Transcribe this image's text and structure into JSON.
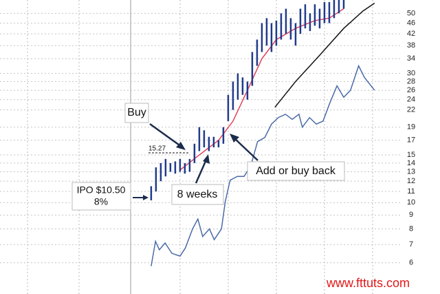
{
  "chart_data": {
    "type": "ohlc",
    "log_scale": true,
    "grid": true,
    "xlim": [
      -31.4,
      60
    ],
    "ylim": [
      4.6,
      56
    ],
    "yticks": [
      6,
      7,
      8,
      9,
      10,
      11,
      12,
      13,
      14,
      15,
      17,
      19,
      22,
      24,
      26,
      28,
      30,
      34,
      38,
      42,
      46,
      50
    ],
    "bars": {
      "color": "#1f3a8a",
      "x": [
        0,
        1,
        2,
        3,
        4,
        5,
        6,
        7,
        8,
        9,
        10,
        11,
        12,
        13,
        14,
        15,
        16,
        17,
        18,
        19,
        20,
        21,
        22,
        23,
        24,
        25,
        26,
        27,
        28,
        29,
        30,
        31,
        32,
        33,
        34,
        35,
        36,
        37,
        38,
        39,
        40
      ],
      "high": [
        11.5,
        13.5,
        14,
        14.5,
        14,
        14.2,
        14.5,
        14,
        14.5,
        16.5,
        19,
        18.5,
        17.5,
        17.5,
        17,
        19,
        25,
        28,
        30,
        29,
        28,
        36,
        40,
        46,
        48,
        46,
        47,
        50,
        52,
        48,
        46,
        52,
        54,
        50,
        54,
        52,
        55,
        55,
        56,
        56,
        56
      ],
      "low": [
        10.2,
        11,
        12,
        12.5,
        13,
        12.8,
        13,
        12.8,
        13,
        14,
        15.5,
        16,
        15.5,
        16,
        16,
        16.5,
        20,
        22,
        24,
        25,
        24,
        27,
        32,
        36,
        38,
        36,
        38,
        40,
        42,
        40,
        38,
        42,
        44,
        43,
        45,
        44,
        46,
        46,
        48,
        50,
        52
      ]
    },
    "series": [
      {
        "color": "#e0405a",
        "x": [
          6,
          10,
          14,
          17,
          20,
          23,
          26,
          30,
          34,
          37,
          40
        ],
        "values": [
          13.2,
          15,
          17,
          20,
          26,
          34,
          40,
          44,
          47,
          48,
          52
        ]
      },
      {
        "color": "#111111",
        "x": [
          25.7,
          30,
          35,
          40,
          44,
          46.4
        ],
        "values": [
          22.5,
          28,
          35,
          44,
          51,
          54.5
        ]
      },
      {
        "color": "#4a6aa8",
        "x": [
          0,
          0.9,
          1.7,
          2.9,
          4.3,
          6,
          7.1,
          8.6,
          9.7,
          10.7,
          12.1,
          13.1,
          14.6,
          15.4,
          16.4,
          17.9,
          19.3,
          20.7,
          22.1,
          23.6,
          25,
          26.4,
          27.9,
          29.3,
          30.7,
          31.4,
          32.9,
          34.3,
          35.7,
          37.1,
          38.6,
          40,
          41.4,
          43.1,
          44.3,
          46.4
        ],
        "values": [
          5.83,
          7.2,
          6.7,
          7.1,
          6.5,
          6.35,
          6.8,
          8,
          8.7,
          7.5,
          8,
          7.3,
          8,
          10.1,
          12.1,
          12.5,
          12.5,
          13.7,
          16.8,
          17.4,
          19.5,
          20.6,
          21.2,
          20.3,
          21.2,
          19,
          20.6,
          19.5,
          20,
          23.3,
          27,
          24.5,
          26,
          32,
          29,
          26
        ]
      }
    ],
    "annotations": [
      "Buy",
      "15.27",
      "Add or buy back",
      "8 weeks",
      "IPO $10.50",
      "8%"
    ],
    "watermark": "www.fttuts.com"
  }
}
